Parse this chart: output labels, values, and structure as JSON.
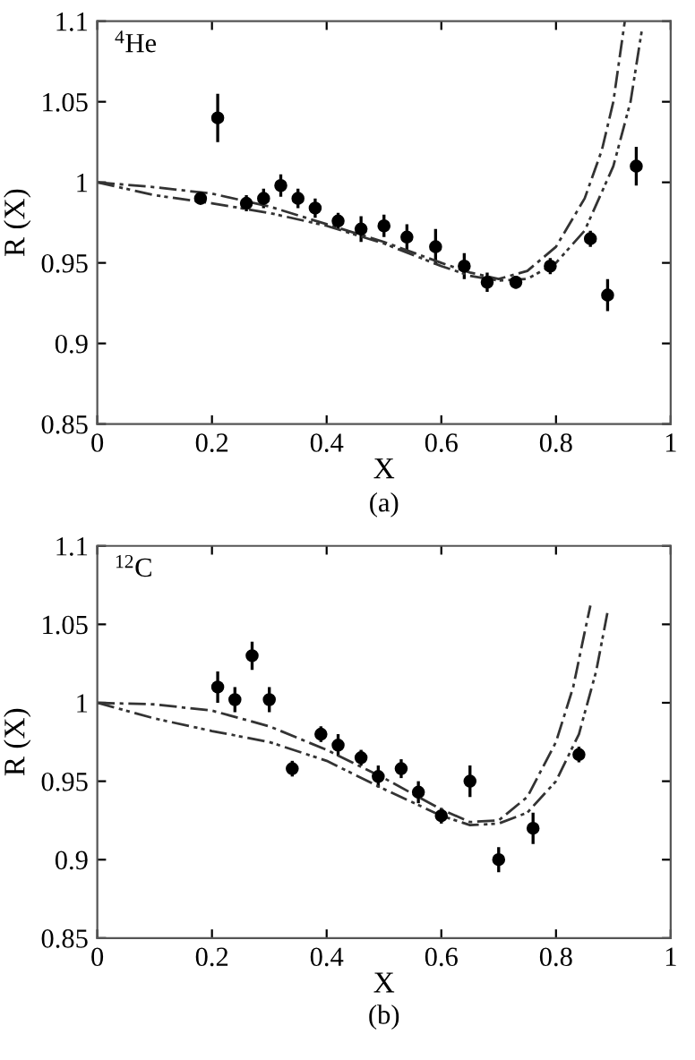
{
  "chart_data": [
    {
      "type": "scatter",
      "xlabel": "X",
      "ylabel": "R (X)",
      "annotations": [
        "$^{4}$He",
        "(a)"
      ],
      "xlim": [
        0,
        1
      ],
      "ylim": [
        0.85,
        1.1
      ],
      "xticks": [
        0,
        0.2,
        0.4,
        0.6,
        0.8,
        1
      ],
      "yticks": [
        0.85,
        0.9,
        0.95,
        1,
        1.05,
        1.1
      ],
      "grid": false,
      "legend": false,
      "series": [
        {
          "color": "#000000",
          "marker": "circle",
          "x": [
            0.18,
            0.21,
            0.26,
            0.29,
            0.32,
            0.35,
            0.38,
            0.42,
            0.46,
            0.5,
            0.54,
            0.59,
            0.64,
            0.68,
            0.73,
            0.79,
            0.86,
            0.89,
            0.94
          ],
          "values": [
            0.99,
            1.04,
            0.987,
            0.99,
            0.998,
            0.99,
            0.984,
            0.976,
            0.971,
            0.973,
            0.966,
            0.96,
            0.948,
            0.938,
            0.938,
            0.948,
            0.965,
            0.93,
            1.01
          ],
          "errors": [
            0.003,
            0.015,
            0.005,
            0.006,
            0.007,
            0.006,
            0.006,
            0.005,
            0.008,
            0.007,
            0.008,
            0.011,
            0.008,
            0.006,
            0.004,
            0.005,
            0.005,
            0.01,
            0.012
          ]
        },
        {
          "type": "line",
          "color": "#333333",
          "line_style": "dashed",
          "x": [
            0,
            0.1,
            0.2,
            0.3,
            0.4,
            0.5,
            0.6,
            0.65,
            0.7,
            0.75,
            0.8,
            0.85,
            0.88,
            0.9,
            0.92
          ],
          "values": [
            1.0,
            0.997,
            0.993,
            0.985,
            0.974,
            0.963,
            0.95,
            0.944,
            0.94,
            0.945,
            0.96,
            0.99,
            1.02,
            1.05,
            1.1
          ]
        },
        {
          "type": "line",
          "color": "#333333",
          "line_style": "dotted",
          "x": [
            0,
            0.1,
            0.2,
            0.3,
            0.4,
            0.5,
            0.6,
            0.65,
            0.7,
            0.75,
            0.8,
            0.85,
            0.9,
            0.93,
            0.95
          ],
          "values": [
            1.0,
            0.992,
            0.987,
            0.981,
            0.973,
            0.962,
            0.948,
            0.942,
            0.939,
            0.94,
            0.95,
            0.97,
            1.01,
            1.05,
            1.095
          ]
        }
      ]
    },
    {
      "type": "scatter",
      "xlabel": "X",
      "ylabel": "R (X)",
      "annotations": [
        "$^{12}$C",
        "(b)"
      ],
      "xlim": [
        0,
        1
      ],
      "ylim": [
        0.85,
        1.1
      ],
      "xticks": [
        0,
        0.2,
        0.4,
        0.6,
        0.8,
        1
      ],
      "yticks": [
        0.85,
        0.9,
        0.95,
        1,
        1.05,
        1.1
      ],
      "grid": false,
      "legend": false,
      "series": [
        {
          "color": "#000000",
          "marker": "circle",
          "x": [
            0.21,
            0.24,
            0.27,
            0.3,
            0.34,
            0.39,
            0.42,
            0.46,
            0.49,
            0.53,
            0.56,
            0.6,
            0.65,
            0.7,
            0.76,
            0.84
          ],
          "values": [
            1.01,
            1.002,
            1.03,
            1.002,
            0.958,
            0.98,
            0.973,
            0.965,
            0.953,
            0.958,
            0.943,
            0.928,
            0.95,
            0.9,
            0.92,
            0.967
          ],
          "errors": [
            0.01,
            0.008,
            0.009,
            0.008,
            0.005,
            0.005,
            0.007,
            0.005,
            0.007,
            0.006,
            0.007,
            0.005,
            0.01,
            0.008,
            0.01,
            0.005
          ]
        },
        {
          "type": "line",
          "color": "#333333",
          "line_style": "dashed",
          "x": [
            0,
            0.1,
            0.2,
            0.3,
            0.4,
            0.5,
            0.6,
            0.65,
            0.7,
            0.75,
            0.8,
            0.83,
            0.85,
            0.86
          ],
          "values": [
            1.0,
            0.999,
            0.995,
            0.985,
            0.97,
            0.952,
            0.932,
            0.924,
            0.925,
            0.94,
            0.975,
            1.01,
            1.045,
            1.062
          ]
        },
        {
          "type": "line",
          "color": "#333333",
          "line_style": "dotted",
          "x": [
            0,
            0.1,
            0.2,
            0.3,
            0.4,
            0.5,
            0.6,
            0.65,
            0.7,
            0.75,
            0.8,
            0.84,
            0.87,
            0.89
          ],
          "values": [
            1.0,
            0.99,
            0.982,
            0.975,
            0.963,
            0.945,
            0.928,
            0.922,
            0.923,
            0.93,
            0.95,
            0.98,
            1.02,
            1.058
          ]
        }
      ]
    }
  ]
}
